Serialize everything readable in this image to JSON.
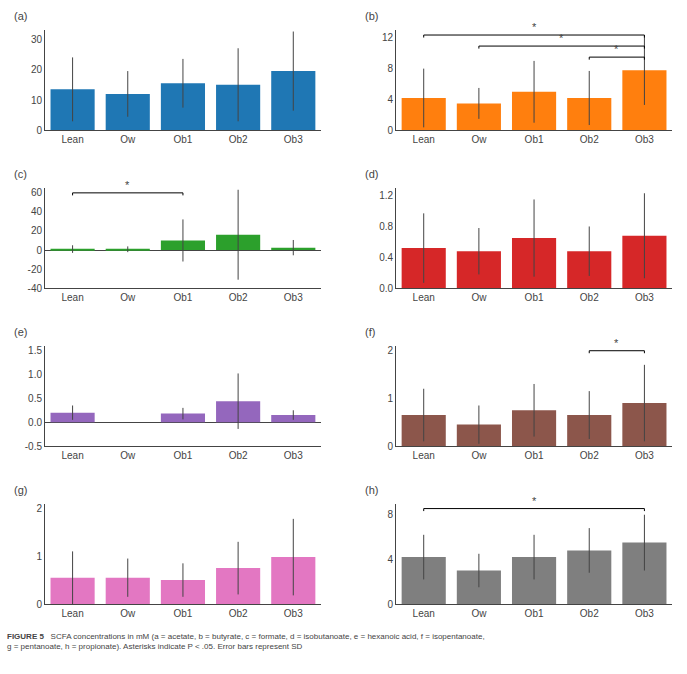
{
  "chart_data": [
    {
      "type": "bar",
      "title": "(a)",
      "categories": [
        "Lean",
        "Ow",
        "Ob1",
        "Ob2",
        "Ob3"
      ],
      "values": [
        13.5,
        12.0,
        15.5,
        15.0,
        19.5
      ],
      "errors": [
        10.5,
        7.5,
        8.0,
        12.0,
        13.0
      ],
      "ylim": [
        0,
        33
      ],
      "yticks": [
        0,
        10,
        20,
        30
      ],
      "grid": false,
      "significance": []
    },
    {
      "type": "bar",
      "title": "(b)",
      "categories": [
        "Lean",
        "Ow",
        "Ob1",
        "Ob2",
        "Ob3"
      ],
      "values": [
        4.2,
        3.5,
        5.0,
        4.2,
        7.8
      ],
      "errors": [
        3.8,
        2.0,
        4.0,
        3.5,
        4.5
      ],
      "ylim": [
        0,
        13
      ],
      "yticks": [
        0,
        4,
        8,
        12
      ],
      "grid": false,
      "significance": [
        {
          "from": "Lean",
          "to": "Ob3",
          "label": "*"
        },
        {
          "from": "Ow",
          "to": "Ob3",
          "label": "*"
        },
        {
          "from": "Ob2",
          "to": "Ob3",
          "label": "*"
        }
      ]
    },
    {
      "type": "bar",
      "title": "(c)",
      "categories": [
        "Lean",
        "Ow",
        "Ob1",
        "Ob2",
        "Ob3"
      ],
      "values": [
        1.0,
        0.8,
        10.0,
        16.0,
        2.5
      ],
      "errors": [
        4.0,
        3.0,
        22.0,
        47.0,
        8.0
      ],
      "ylim": [
        -40,
        65
      ],
      "yticks": [
        -40,
        -20,
        0,
        20,
        40,
        60
      ],
      "grid": false,
      "significance": [
        {
          "from": "Lean",
          "to": "Ob1",
          "label": "*"
        }
      ]
    },
    {
      "type": "bar",
      "title": "(d)",
      "categories": [
        "Lean",
        "Ow",
        "Ob1",
        "Ob2",
        "Ob3"
      ],
      "values": [
        0.52,
        0.48,
        0.65,
        0.48,
        0.68
      ],
      "errors": [
        0.45,
        0.3,
        0.5,
        0.32,
        0.55
      ],
      "ylim": [
        0,
        1.3
      ],
      "yticks": [
        {
          "value": 0,
          "label": "0.0"
        },
        0.4,
        0.8,
        1.2
      ],
      "grid": false,
      "significance": []
    },
    {
      "type": "bar",
      "title": "(e)",
      "categories": [
        "Lean",
        "Ow",
        "Ob1",
        "Ob2",
        "Ob3"
      ],
      "values": [
        0.2,
        0.0,
        0.18,
        0.44,
        0.15
      ],
      "errors": [
        0.15,
        0.0,
        0.12,
        0.58,
        0.1
      ],
      "ylim": [
        -0.5,
        1.6
      ],
      "yticks": [
        -0.5,
        {
          "value": 0,
          "label": "0.0"
        },
        0.5,
        {
          "value": 1,
          "label": "1.0"
        },
        1.5
      ],
      "grid": false,
      "significance": []
    },
    {
      "type": "bar",
      "title": "(f)",
      "categories": [
        "Lean",
        "Ow",
        "Ob1",
        "Ob2",
        "Ob3"
      ],
      "values": [
        0.65,
        0.45,
        0.75,
        0.65,
        0.9
      ],
      "errors": [
        0.55,
        0.4,
        0.55,
        0.5,
        0.8
      ],
      "ylim": [
        0,
        2.1
      ],
      "yticks": [
        0,
        1,
        2
      ],
      "grid": false,
      "significance": [
        {
          "from": "Ob2",
          "to": "Ob3",
          "label": "*"
        }
      ]
    },
    {
      "type": "bar",
      "title": "(g)",
      "categories": [
        "Lean",
        "Ow",
        "Ob1",
        "Ob2",
        "Ob3"
      ],
      "values": [
        0.55,
        0.55,
        0.5,
        0.75,
        0.98
      ],
      "errors": [
        0.55,
        0.4,
        0.35,
        0.55,
        0.8
      ],
      "ylim": [
        0,
        2.1
      ],
      "yticks": [
        0,
        1,
        2
      ],
      "grid": false,
      "significance": []
    },
    {
      "type": "bar",
      "title": "(h)",
      "categories": [
        "Lean",
        "Ow",
        "Ob1",
        "Ob2",
        "Ob3"
      ],
      "values": [
        4.2,
        3.0,
        4.2,
        4.8,
        5.5
      ],
      "errors": [
        2.0,
        1.5,
        2.0,
        2.0,
        2.5
      ],
      "ylim": [
        0,
        9
      ],
      "yticks": [
        0,
        4,
        8
      ],
      "grid": false,
      "significance": [
        {
          "from": "Lean",
          "to": "Ob3",
          "label": "*"
        }
      ]
    }
  ],
  "caption_title": "FIGURE 5",
  "caption": "   SCFA concentrations in mM (a = acetate, b = butyrate, c = formate, d = isobutanoate, e = hexanoic acid, f = isopentanoate,\ng = pentanoate, h = propionate). Asterisks indicate P < .05. Error bars represent SD"
}
